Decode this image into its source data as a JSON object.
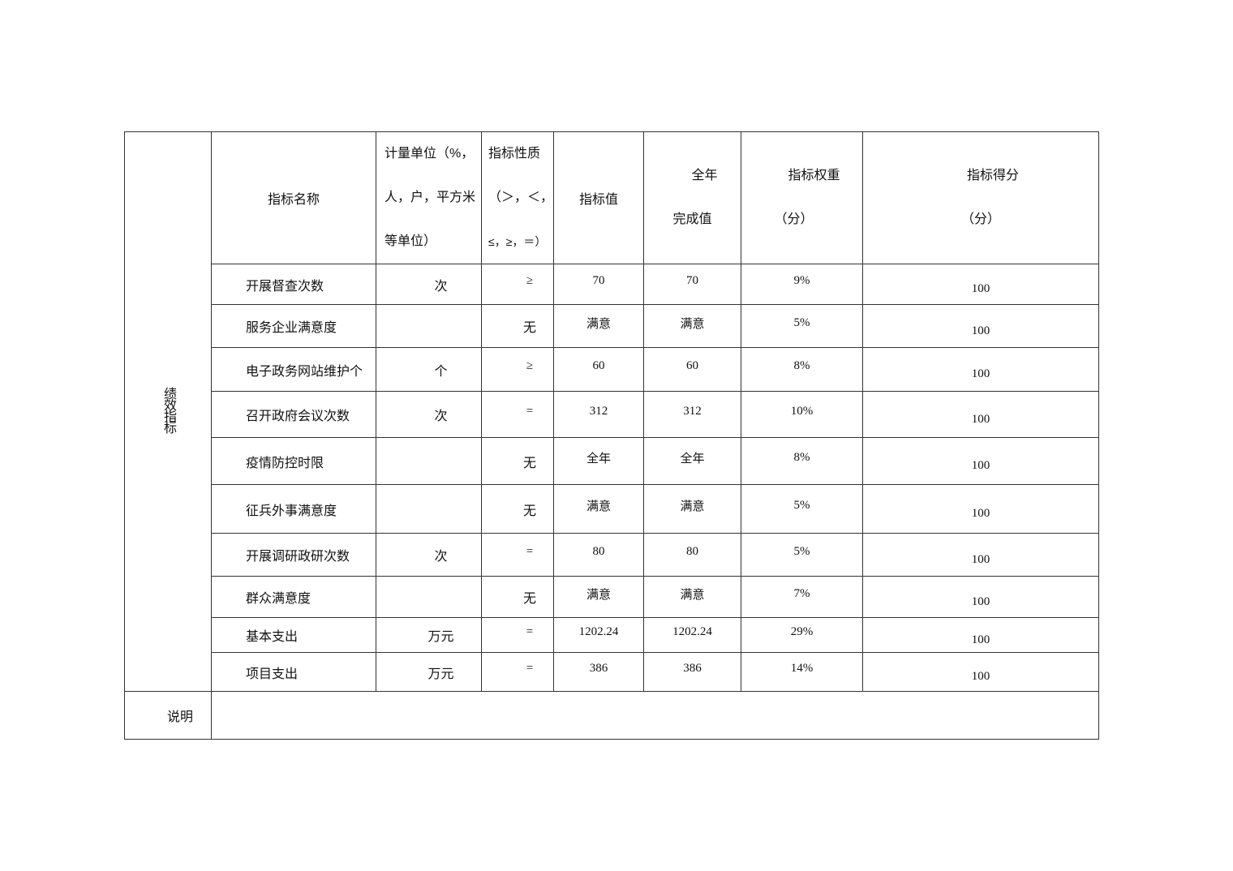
{
  "side_label": "绩效指标",
  "headers": {
    "name": "指标名称",
    "unit": [
      "计量单位（%，",
      "人，户，平方米",
      "等单位）"
    ],
    "nature": [
      "指标性质",
      "（＞，＜，",
      "≤，≥，＝）"
    ],
    "value": "指标值",
    "actual": [
      "全年",
      "完成值"
    ],
    "weight": [
      "指标权重",
      "（分）"
    ],
    "score": [
      "指标得分",
      "（分）"
    ]
  },
  "rows": [
    {
      "name": "开展督查次数",
      "unit": "次",
      "nature": "≥",
      "value": "70",
      "actual": "70",
      "weight": "9%",
      "score": "100"
    },
    {
      "name": "服务企业满意度",
      "unit": "",
      "nature": "无",
      "value": "满意",
      "actual": "满意",
      "weight": "5%",
      "score": "100"
    },
    {
      "name": "电子政务网站维护个",
      "unit": "个",
      "nature": "≥",
      "value": "60",
      "actual": "60",
      "weight": "8%",
      "score": "100"
    },
    {
      "name": "召开政府会议次数",
      "unit": "次",
      "nature": "=",
      "value": "312",
      "actual": "312",
      "weight": "10%",
      "score": "100"
    },
    {
      "name": "疫情防控时限",
      "unit": "",
      "nature": "无",
      "value": "全年",
      "actual": "全年",
      "weight": "8%",
      "score": "100"
    },
    {
      "name": "征兵外事满意度",
      "unit": "",
      "nature": "无",
      "value": "满意",
      "actual": "满意",
      "weight": "5%",
      "score": "100"
    },
    {
      "name": "开展调研政研次数",
      "unit": "次",
      "nature": "=",
      "value": "80",
      "actual": "80",
      "weight": "5%",
      "score": "100"
    },
    {
      "name": "群众满意度",
      "unit": "",
      "nature": "无",
      "value": "满意",
      "actual": "满意",
      "weight": "7%",
      "score": "100"
    },
    {
      "name": "基本支出",
      "unit": "万元",
      "nature": "=",
      "value": "1202.24",
      "actual": "1202.24",
      "weight": "29%",
      "score": "100"
    },
    {
      "name": "项目支出",
      "unit": "万元",
      "nature": "=",
      "value": "386",
      "actual": "386",
      "weight": "14%",
      "score": "100"
    }
  ],
  "note_label": "说明",
  "note_value": ""
}
